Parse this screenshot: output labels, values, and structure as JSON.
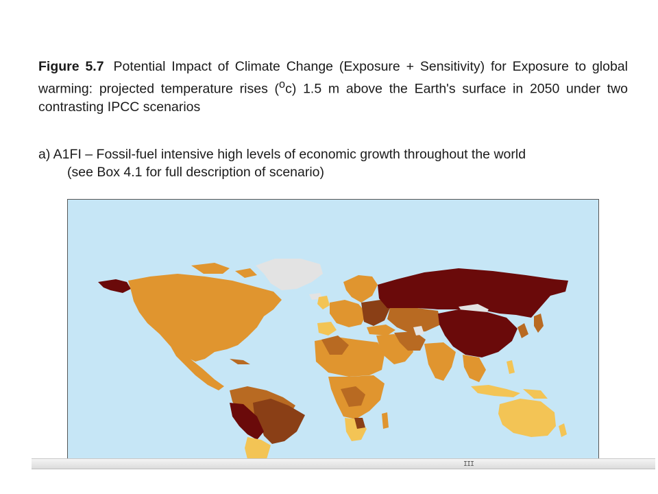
{
  "figure": {
    "number": "Figure 5.7",
    "title_part1": "Potential Impact of Climate Change (Exposure + Sensitivity) for Exposure to global warming: projected temperature rises (",
    "title_sup": "o",
    "title_part2": "c) 1.5 m above the Earth's surface in 2050 under two contrasting IPCC scenarios"
  },
  "scenario": {
    "label": "a) A1FI – Fossil-fuel intensive high levels of economic growth throughout the world",
    "sub": "(see Box 4.1 for full description of scenario)"
  },
  "map": {
    "ocean_color": "#c6e6f6",
    "no_data_color": "#e3e3e3",
    "palette": [
      "#f3c455",
      "#e0952f",
      "#b86a22",
      "#8a3f16",
      "#6a0a0a"
    ]
  },
  "scrollbar": {
    "grip": "III"
  }
}
